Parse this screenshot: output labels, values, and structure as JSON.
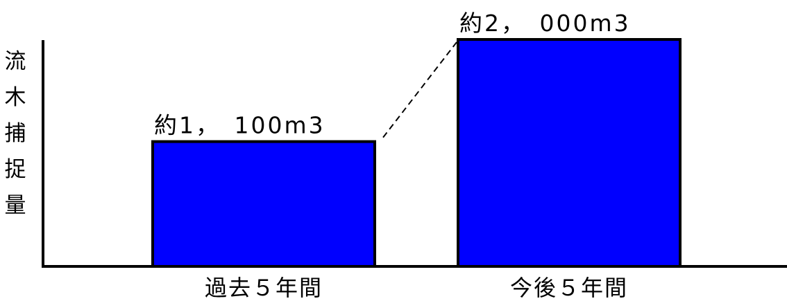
{
  "chart_data": {
    "type": "bar",
    "categories": [
      "過去５年間",
      "今後５年間"
    ],
    "values": [
      1100,
      2000
    ],
    "data_labels": [
      "約1，　100m3",
      "約2，　000m3"
    ],
    "ylabel": "流木捕捉量",
    "xlabel": "",
    "ylim": [
      0,
      2000
    ],
    "grid": false,
    "bar_color": "#0000ff",
    "bar_border_color": "#000000",
    "connector": "dashed"
  }
}
